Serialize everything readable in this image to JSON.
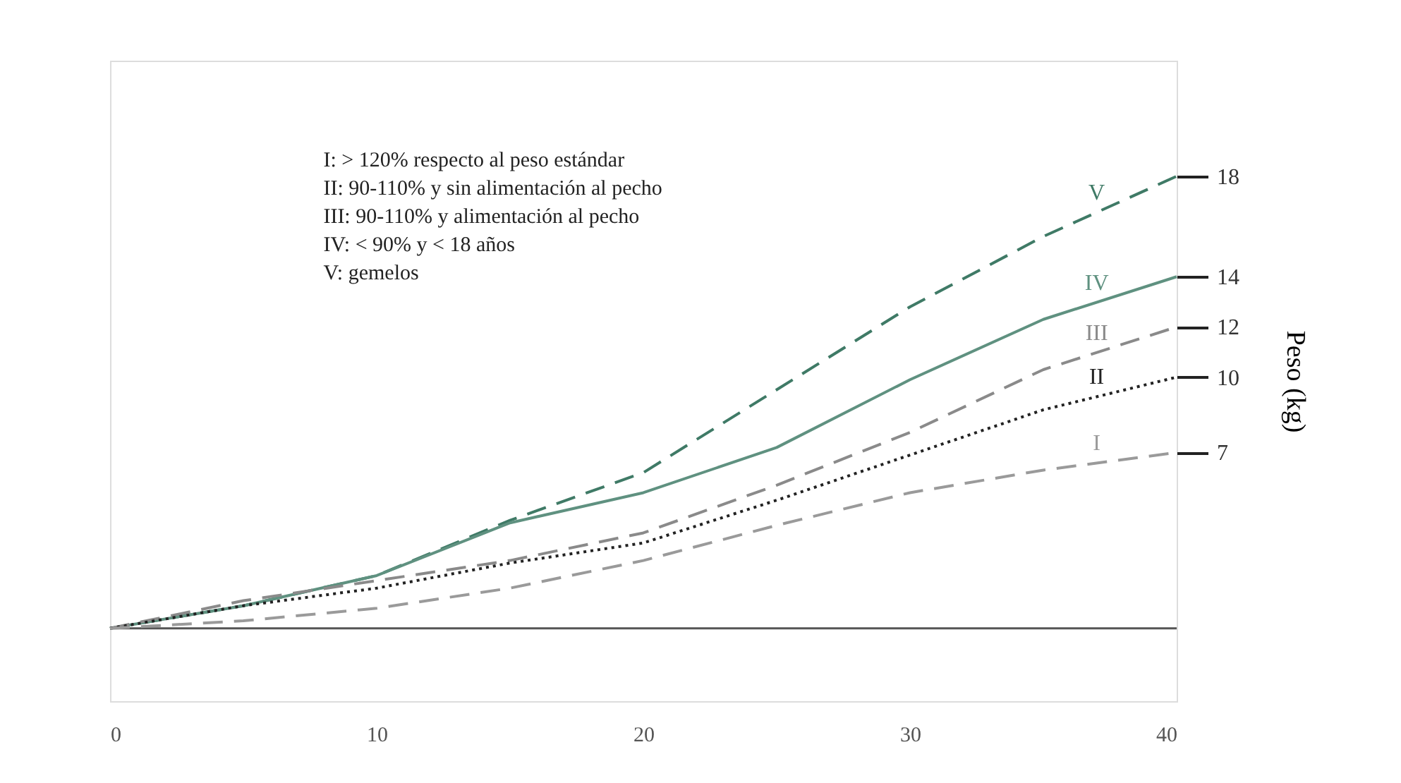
{
  "chart_data": {
    "type": "line",
    "x": [
      0,
      5,
      10,
      15,
      20,
      25,
      30,
      35,
      40
    ],
    "xlim": [
      0,
      40
    ],
    "xticks": [
      0,
      10,
      20,
      30,
      40
    ],
    "ylim": [
      -2.9,
      22.6
    ],
    "yticks": [
      7,
      10,
      12,
      14,
      18
    ],
    "ylabel": "Peso (kg)",
    "grid": false,
    "marker": "none",
    "ref_lines": [
      {
        "axis": "y",
        "value": 0,
        "color": "#555555"
      }
    ],
    "annotations": [
      "I: > 120% respecto al peso estándar",
      "II: 90-110% y sin alimentación al pecho",
      "III: 90-110% y alimentación al pecho",
      "IV: < 90%  y < 18 años",
      "V: gemelos"
    ],
    "series": [
      {
        "name": "V",
        "color": "#3f7a66",
        "line_style": "dashed",
        "values": [
          0,
          0.9,
          2.1,
          4.3,
          6.2,
          9.5,
          12.8,
          15.6,
          18
        ]
      },
      {
        "name": "IV",
        "color": "#5f9180",
        "line_style": "solid",
        "values": [
          0,
          0.9,
          2.1,
          4.2,
          5.4,
          7.2,
          9.9,
          12.3,
          14
        ]
      },
      {
        "name": "III",
        "color": "#8a8a8a",
        "line_style": "dashed",
        "values": [
          0,
          1.1,
          1.9,
          2.7,
          3.8,
          5.7,
          7.8,
          10.3,
          12
        ]
      },
      {
        "name": "II",
        "color": "#222222",
        "line_style": "dotted",
        "values": [
          0,
          0.9,
          1.6,
          2.6,
          3.4,
          5.1,
          6.9,
          8.7,
          10
        ]
      },
      {
        "name": "I",
        "color": "#9a9a9a",
        "line_style": "dashed",
        "values": [
          0,
          0.3,
          0.8,
          1.6,
          2.7,
          4.1,
          5.4,
          6.3,
          7
        ]
      }
    ]
  }
}
